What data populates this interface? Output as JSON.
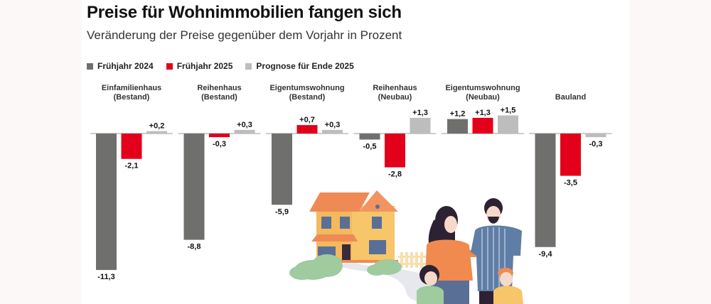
{
  "header": {
    "title": "Preise für Wohnimmobilien fangen sich",
    "subtitle": "Veränderung der Preise gegenüber dem Vorjahr in Prozent"
  },
  "legend": [
    {
      "label": "Frühjahr 2024",
      "color": "#6f6f6d"
    },
    {
      "label": "Frühjahr 2025",
      "color": "#e2001a"
    },
    {
      "label": "Prognose für Ende 2025",
      "color": "#bdbdbd"
    }
  ],
  "chart_data": {
    "type": "bar",
    "title": "Preise für Wohnimmobilien fangen sich",
    "subtitle": "Veränderung der Preise gegenüber dem Vorjahr in Prozent",
    "xlabel": "",
    "ylabel": "",
    "grid": false,
    "legend_position": "top-left",
    "categories": [
      [
        "Einfamilienhaus",
        "(Bestand)"
      ],
      [
        "Reihenhaus",
        "(Bestand)"
      ],
      [
        "Eigentumswohnung",
        "(Bestand)"
      ],
      [
        "Reihenhaus",
        "(Neubau)"
      ],
      [
        "Eigentumswohnung",
        "(Neubau)"
      ],
      [
        "Bauland"
      ]
    ],
    "series": [
      {
        "name": "Frühjahr 2024",
        "color": "#6f6f6d",
        "values": [
          -11.3,
          -8.8,
          -5.9,
          -0.5,
          1.2,
          -9.4
        ],
        "labels": [
          "-11,3",
          "-8,8",
          "-5,9",
          "-0,5",
          "+1,2",
          "-9,4"
        ]
      },
      {
        "name": "Frühjahr 2025",
        "color": "#e2001a",
        "values": [
          -2.1,
          -0.3,
          0.7,
          -2.8,
          1.3,
          -3.5
        ],
        "labels": [
          "-2,1",
          "-0,3",
          "+0,7",
          "-2,8",
          "+1,3",
          "-3,5"
        ]
      },
      {
        "name": "Prognose für Ende 2025",
        "color": "#bdbdbd",
        "values": [
          0.2,
          0.3,
          0.3,
          1.3,
          1.5,
          -0.3
        ],
        "labels": [
          "+0,2",
          "+0,3",
          "+0,3",
          "+1,3",
          "+1,5",
          "-0,3"
        ]
      }
    ],
    "ylim": [
      -11.3,
      1.5
    ]
  },
  "illustration": {
    "description": "house-and-family-illustration"
  }
}
